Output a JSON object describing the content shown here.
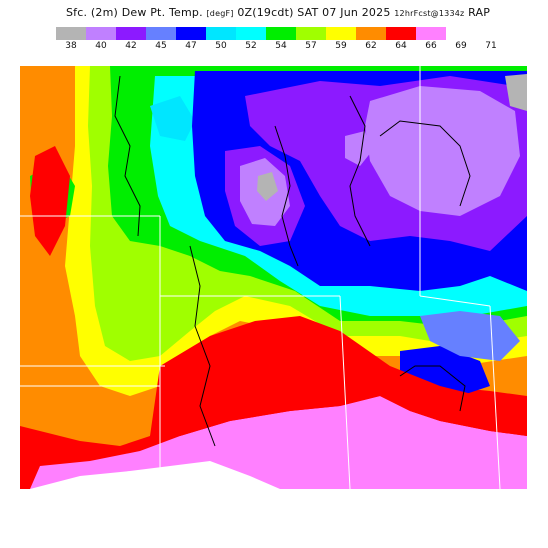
{
  "title": {
    "product": "Sfc. (2m) Dew Pt. Temp.",
    "units": "[degF]",
    "time": "0Z(19cdt)",
    "date": "SAT 07 Jun 2025",
    "forecast": "12hrFcst@1334z",
    "model": "RAP"
  },
  "legend": {
    "ticks": [
      "38",
      "40",
      "42",
      "45",
      "47",
      "50",
      "52",
      "54",
      "57",
      "59",
      "62",
      "64",
      "66",
      "69",
      "71"
    ],
    "colors": [
      "#b4b4b4",
      "#c080ff",
      "#8c1aff",
      "#6680ff",
      "#0000ff",
      "#00e6ff",
      "#00ffff",
      "#00ee00",
      "#a0ff00",
      "#ffff00",
      "#ff8c00",
      "#ff0000",
      "#ff80ff",
      "#ffffff"
    ]
  },
  "map": {
    "background_color": "#ff0000",
    "line_color": "#000000",
    "state_line_color": "#ffffff"
  }
}
